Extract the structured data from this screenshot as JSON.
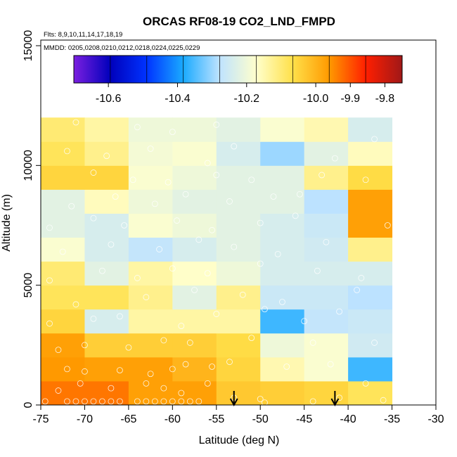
{
  "chart_data": {
    "type": "heatmap",
    "title": "ORCAS RF08-19 CO2_LND_FMPD",
    "subtitle_flights": "Flts: 8,9,10,11,14,17,18,19",
    "subtitle_dates": "MMDD: 0205,0208,0210,0212,0218,0224,0225,0229",
    "xlabel": "Latitude (deg N)",
    "ylabel": "Altitude (m)",
    "xlim": [
      -75,
      -30
    ],
    "ylim": [
      0,
      15000
    ],
    "x_ticks": [
      -75,
      -70,
      -65,
      -60,
      -55,
      -50,
      -45,
      -40,
      -35,
      -30
    ],
    "x_tick_labels": [
      "-75",
      "-70",
      "-65",
      "-60",
      "-55",
      "-50",
      "-45",
      "-40",
      "-35",
      "-30"
    ],
    "y_ticks": [
      0,
      5000,
      10000,
      15000
    ],
    "y_tick_labels": [
      "0",
      "5000",
      "10000",
      "15000"
    ],
    "colorbar": {
      "range": [
        -10.7,
        -9.75
      ],
      "tick_values": [
        -10.6,
        -10.4,
        -10.2,
        -10.0,
        -9.9,
        -9.8
      ],
      "tick_labels": [
        "-10.6",
        "-10.4",
        "-10.2",
        "-10.0",
        "-9.9",
        "-9.8"
      ],
      "colors": [
        "#7b1fe0",
        "#0000bb",
        "#0033ff",
        "#1aaaff",
        "#bfe3ff",
        "#ffffcc",
        "#ffe04a",
        "#ff9a00",
        "#ff1f00",
        "#a01818"
      ]
    },
    "lat_bins": [
      -75,
      -70,
      -65,
      -60,
      -55,
      -50,
      -45,
      -40,
      -35
    ],
    "alt_bin_size": 1000,
    "cells": [
      {
        "lat0": -75,
        "alt0": 0,
        "v": -9.93
      },
      {
        "lat0": -70,
        "alt0": 0,
        "v": -9.93
      },
      {
        "lat0": -65,
        "alt0": 0,
        "v": -9.97
      },
      {
        "lat0": -60,
        "alt0": 0,
        "v": -9.97
      },
      {
        "lat0": -55,
        "alt0": 0,
        "v": -10.03
      },
      {
        "lat0": -50,
        "alt0": 0,
        "v": -10.04
      },
      {
        "lat0": -45,
        "alt0": 0,
        "v": -10.05
      },
      {
        "lat0": -40,
        "alt0": 0,
        "v": -10.08
      },
      {
        "lat0": -75,
        "alt0": 1000,
        "v": -9.96
      },
      {
        "lat0": -70,
        "alt0": 1000,
        "v": -9.97
      },
      {
        "lat0": -65,
        "alt0": 1000,
        "v": -9.97
      },
      {
        "lat0": -60,
        "alt0": 1000,
        "v": -10.0
      },
      {
        "lat0": -55,
        "alt0": 1000,
        "v": -10.05
      },
      {
        "lat0": -50,
        "alt0": 1000,
        "v": -10.15
      },
      {
        "lat0": -45,
        "alt0": 1000,
        "v": -10.18
      },
      {
        "lat0": -40,
        "alt0": 1000,
        "v": -10.36
      },
      {
        "lat0": -75,
        "alt0": 2000,
        "v": -9.97
      },
      {
        "lat0": -70,
        "alt0": 2000,
        "v": -10.04
      },
      {
        "lat0": -65,
        "alt0": 2000,
        "v": -10.04
      },
      {
        "lat0": -60,
        "alt0": 2000,
        "v": -10.04
      },
      {
        "lat0": -55,
        "alt0": 2000,
        "v": -10.06
      },
      {
        "lat0": -50,
        "alt0": 2000,
        "v": -10.2
      },
      {
        "lat0": -45,
        "alt0": 2000,
        "v": -10.18
      },
      {
        "lat0": -40,
        "alt0": 2000,
        "v": -10.25
      },
      {
        "lat0": -75,
        "alt0": 3000,
        "v": -10.05
      },
      {
        "lat0": -70,
        "alt0": 3000,
        "v": -10.24
      },
      {
        "lat0": -65,
        "alt0": 3000,
        "v": -10.14
      },
      {
        "lat0": -60,
        "alt0": 3000,
        "v": -10.14
      },
      {
        "lat0": -55,
        "alt0": 3000,
        "v": -10.14
      },
      {
        "lat0": -50,
        "alt0": 3000,
        "v": -10.36
      },
      {
        "lat0": -45,
        "alt0": 3000,
        "v": -10.27
      },
      {
        "lat0": -40,
        "alt0": 3000,
        "v": -10.26
      },
      {
        "lat0": -75,
        "alt0": 4000,
        "v": -10.08
      },
      {
        "lat0": -70,
        "alt0": 4000,
        "v": -10.08
      },
      {
        "lat0": -65,
        "alt0": 4000,
        "v": -10.12
      },
      {
        "lat0": -60,
        "alt0": 4000,
        "v": -10.22
      },
      {
        "lat0": -55,
        "alt0": 4000,
        "v": -10.12
      },
      {
        "lat0": -50,
        "alt0": 4000,
        "v": -10.26
      },
      {
        "lat0": -45,
        "alt0": 4000,
        "v": -10.26
      },
      {
        "lat0": -40,
        "alt0": 4000,
        "v": -10.28
      },
      {
        "lat0": -75,
        "alt0": 5000,
        "v": -10.1
      },
      {
        "lat0": -70,
        "alt0": 5000,
        "v": -10.22
      },
      {
        "lat0": -65,
        "alt0": 5000,
        "v": -10.14
      },
      {
        "lat0": -60,
        "alt0": 5000,
        "v": -10.17
      },
      {
        "lat0": -55,
        "alt0": 5000,
        "v": -10.2
      },
      {
        "lat0": -50,
        "alt0": 5000,
        "v": -10.24
      },
      {
        "lat0": -45,
        "alt0": 5000,
        "v": -10.24
      },
      {
        "lat0": -40,
        "alt0": 5000,
        "v": -10.24
      },
      {
        "lat0": -75,
        "alt0": 6000,
        "v": -10.18
      },
      {
        "lat0": -70,
        "alt0": 6000,
        "v": -10.24
      },
      {
        "lat0": -65,
        "alt0": 6000,
        "v": -10.27
      },
      {
        "lat0": -60,
        "alt0": 6000,
        "v": -10.24
      },
      {
        "lat0": -55,
        "alt0": 6000,
        "v": -10.22
      },
      {
        "lat0": -50,
        "alt0": 6000,
        "v": -10.24
      },
      {
        "lat0": -45,
        "alt0": 6000,
        "v": -10.25
      },
      {
        "lat0": -40,
        "alt0": 6000,
        "v": -10.12
      },
      {
        "lat0": -75,
        "alt0": 7000,
        "v": -10.22
      },
      {
        "lat0": -70,
        "alt0": 7000,
        "v": -10.24
      },
      {
        "lat0": -65,
        "alt0": 7000,
        "v": -10.18
      },
      {
        "lat0": -60,
        "alt0": 7000,
        "v": -10.2
      },
      {
        "lat0": -55,
        "alt0": 7000,
        "v": -10.22
      },
      {
        "lat0": -50,
        "alt0": 7000,
        "v": -10.24
      },
      {
        "lat0": -45,
        "alt0": 7000,
        "v": -10.26
      },
      {
        "lat0": -40,
        "alt0": 7000,
        "v": -9.97
      },
      {
        "lat0": -75,
        "alt0": 8000,
        "v": -10.22
      },
      {
        "lat0": -70,
        "alt0": 8000,
        "v": -10.16
      },
      {
        "lat0": -65,
        "alt0": 8000,
        "v": -10.2
      },
      {
        "lat0": -60,
        "alt0": 8000,
        "v": -10.22
      },
      {
        "lat0": -55,
        "alt0": 8000,
        "v": -10.22
      },
      {
        "lat0": -50,
        "alt0": 8000,
        "v": -10.22
      },
      {
        "lat0": -45,
        "alt0": 8000,
        "v": -10.28
      },
      {
        "lat0": -40,
        "alt0": 8000,
        "v": -9.97
      },
      {
        "lat0": -75,
        "alt0": 9000,
        "v": -10.05
      },
      {
        "lat0": -70,
        "alt0": 9000,
        "v": -10.05
      },
      {
        "lat0": -65,
        "alt0": 9000,
        "v": -10.18
      },
      {
        "lat0": -60,
        "alt0": 9000,
        "v": -10.2
      },
      {
        "lat0": -55,
        "alt0": 9000,
        "v": -10.22
      },
      {
        "lat0": -50,
        "alt0": 9000,
        "v": -10.22
      },
      {
        "lat0": -45,
        "alt0": 9000,
        "v": -10.12
      },
      {
        "lat0": -40,
        "alt0": 9000,
        "v": -10.06
      },
      {
        "lat0": -75,
        "alt0": 10000,
        "v": -10.08
      },
      {
        "lat0": -70,
        "alt0": 10000,
        "v": -10.12
      },
      {
        "lat0": -65,
        "alt0": 10000,
        "v": -10.19
      },
      {
        "lat0": -60,
        "alt0": 10000,
        "v": -10.18
      },
      {
        "lat0": -55,
        "alt0": 10000,
        "v": -10.24
      },
      {
        "lat0": -50,
        "alt0": 10000,
        "v": -10.3
      },
      {
        "lat0": -45,
        "alt0": 10000,
        "v": -10.22
      },
      {
        "lat0": -40,
        "alt0": 10000,
        "v": -10.16
      },
      {
        "lat0": -75,
        "alt0": 11000,
        "v": -10.1
      },
      {
        "lat0": -70,
        "alt0": 11000,
        "v": -10.14
      },
      {
        "lat0": -65,
        "alt0": 11000,
        "v": -10.2
      },
      {
        "lat0": -60,
        "alt0": 11000,
        "v": -10.2
      },
      {
        "lat0": -55,
        "alt0": 11000,
        "v": -10.22
      },
      {
        "lat0": -50,
        "alt0": 11000,
        "v": -10.18
      },
      {
        "lat0": -45,
        "alt0": 11000,
        "v": -10.15
      },
      {
        "lat0": -40,
        "alt0": 11000,
        "v": -10.24
      }
    ],
    "sample_points": [
      {
        "lat": -74.5,
        "alt": 150
      },
      {
        "lat": -72.0,
        "alt": 150
      },
      {
        "lat": -71.0,
        "alt": 150
      },
      {
        "lat": -70.0,
        "alt": 150
      },
      {
        "lat": -69.0,
        "alt": 150
      },
      {
        "lat": -68.0,
        "alt": 150
      },
      {
        "lat": -67.0,
        "alt": 150
      },
      {
        "lat": -66.0,
        "alt": 150
      },
      {
        "lat": -64.0,
        "alt": 150
      },
      {
        "lat": -63.0,
        "alt": 150
      },
      {
        "lat": -62.0,
        "alt": 150
      },
      {
        "lat": -61.0,
        "alt": 150
      },
      {
        "lat": -60.0,
        "alt": 150
      },
      {
        "lat": -59.0,
        "alt": 150
      },
      {
        "lat": -58.0,
        "alt": 150
      },
      {
        "lat": -57.0,
        "alt": 150
      },
      {
        "lat": -53.0,
        "alt": 300
      },
      {
        "lat": -50.0,
        "alt": 250
      },
      {
        "lat": -49.5,
        "alt": 100
      },
      {
        "lat": -44.0,
        "alt": 150
      },
      {
        "lat": -41.0,
        "alt": 300
      },
      {
        "lat": -36.0,
        "alt": 200
      },
      {
        "lat": -38.0,
        "alt": 900
      },
      {
        "lat": -73.0,
        "alt": 600
      },
      {
        "lat": -70.5,
        "alt": 900
      },
      {
        "lat": -67.0,
        "alt": 700
      },
      {
        "lat": -63.0,
        "alt": 900
      },
      {
        "lat": -61.0,
        "alt": 700
      },
      {
        "lat": -59.0,
        "alt": 500
      },
      {
        "lat": -56.0,
        "alt": 900
      },
      {
        "lat": -72.0,
        "alt": 1500
      },
      {
        "lat": -70.0,
        "alt": 1400
      },
      {
        "lat": -66.0,
        "alt": 1450
      },
      {
        "lat": -62.5,
        "alt": 1300
      },
      {
        "lat": -60.0,
        "alt": 1500
      },
      {
        "lat": -58.5,
        "alt": 1700
      },
      {
        "lat": -55.5,
        "alt": 1600
      },
      {
        "lat": -53.5,
        "alt": 1800
      },
      {
        "lat": -47.0,
        "alt": 1600
      },
      {
        "lat": -42.0,
        "alt": 1700
      },
      {
        "lat": -73.0,
        "alt": 2300
      },
      {
        "lat": -70.0,
        "alt": 2500
      },
      {
        "lat": -65.0,
        "alt": 2400
      },
      {
        "lat": -61.0,
        "alt": 2700
      },
      {
        "lat": -58.0,
        "alt": 2600
      },
      {
        "lat": -51.0,
        "alt": 2800
      },
      {
        "lat": -44.0,
        "alt": 2600
      },
      {
        "lat": -37.0,
        "alt": 2600
      },
      {
        "lat": -74.0,
        "alt": 3400
      },
      {
        "lat": -69.0,
        "alt": 3600
      },
      {
        "lat": -66.0,
        "alt": 3700
      },
      {
        "lat": -59.0,
        "alt": 3300
      },
      {
        "lat": -55.0,
        "alt": 3800
      },
      {
        "lat": -49.5,
        "alt": 4000
      },
      {
        "lat": -45.0,
        "alt": 3500
      },
      {
        "lat": -41.0,
        "alt": 3900
      },
      {
        "lat": -71.0,
        "alt": 4200
      },
      {
        "lat": -63.0,
        "alt": 4500
      },
      {
        "lat": -57.5,
        "alt": 4800
      },
      {
        "lat": -52.0,
        "alt": 4600
      },
      {
        "lat": -47.5,
        "alt": 4300
      },
      {
        "lat": -39.0,
        "alt": 4800
      },
      {
        "lat": -74.0,
        "alt": 5200
      },
      {
        "lat": -68.0,
        "alt": 5600
      },
      {
        "lat": -64.0,
        "alt": 5300
      },
      {
        "lat": -60.0,
        "alt": 5700
      },
      {
        "lat": -56.0,
        "alt": 5500
      },
      {
        "lat": -50.0,
        "alt": 5900
      },
      {
        "lat": -43.5,
        "alt": 5600
      },
      {
        "lat": -38.5,
        "alt": 5300
      },
      {
        "lat": -72.5,
        "alt": 6400
      },
      {
        "lat": -67.0,
        "alt": 6700
      },
      {
        "lat": -61.5,
        "alt": 6500
      },
      {
        "lat": -57.0,
        "alt": 6900
      },
      {
        "lat": -53.0,
        "alt": 6600
      },
      {
        "lat": -48.0,
        "alt": 6300
      },
      {
        "lat": -42.5,
        "alt": 6800
      },
      {
        "lat": -74.0,
        "alt": 7400
      },
      {
        "lat": -69.0,
        "alt": 7800
      },
      {
        "lat": -65.5,
        "alt": 7500
      },
      {
        "lat": -59.5,
        "alt": 7700
      },
      {
        "lat": -55.5,
        "alt": 7300
      },
      {
        "lat": -50.0,
        "alt": 7600
      },
      {
        "lat": -46.0,
        "alt": 7900
      },
      {
        "lat": -35.5,
        "alt": 7500
      },
      {
        "lat": -71.5,
        "alt": 8300
      },
      {
        "lat": -66.5,
        "alt": 8700
      },
      {
        "lat": -62.0,
        "alt": 8400
      },
      {
        "lat": -58.5,
        "alt": 8800
      },
      {
        "lat": -53.5,
        "alt": 8500
      },
      {
        "lat": -48.5,
        "alt": 8700
      },
      {
        "lat": -45.5,
        "alt": 8800
      },
      {
        "lat": -69.0,
        "alt": 9700
      },
      {
        "lat": -64.5,
        "alt": 9400
      },
      {
        "lat": -60.5,
        "alt": 9300
      },
      {
        "lat": -55.0,
        "alt": 9600
      },
      {
        "lat": -51.0,
        "alt": 9400
      },
      {
        "lat": -43.0,
        "alt": 9600
      },
      {
        "lat": -38.0,
        "alt": 9400
      },
      {
        "lat": -72.0,
        "alt": 10600
      },
      {
        "lat": -67.5,
        "alt": 10400
      },
      {
        "lat": -62.5,
        "alt": 10700
      },
      {
        "lat": -56.0,
        "alt": 10100
      },
      {
        "lat": -53.0,
        "alt": 10800
      },
      {
        "lat": -41.5,
        "alt": 10300
      },
      {
        "lat": -71.0,
        "alt": 11800
      },
      {
        "lat": -64.0,
        "alt": 11600
      },
      {
        "lat": -60.0,
        "alt": 11400
      },
      {
        "lat": -55.0,
        "alt": 11700
      },
      {
        "lat": -37.0,
        "alt": 11100
      }
    ],
    "arrow_markers_lat": [
      -53.0,
      -41.5
    ]
  }
}
